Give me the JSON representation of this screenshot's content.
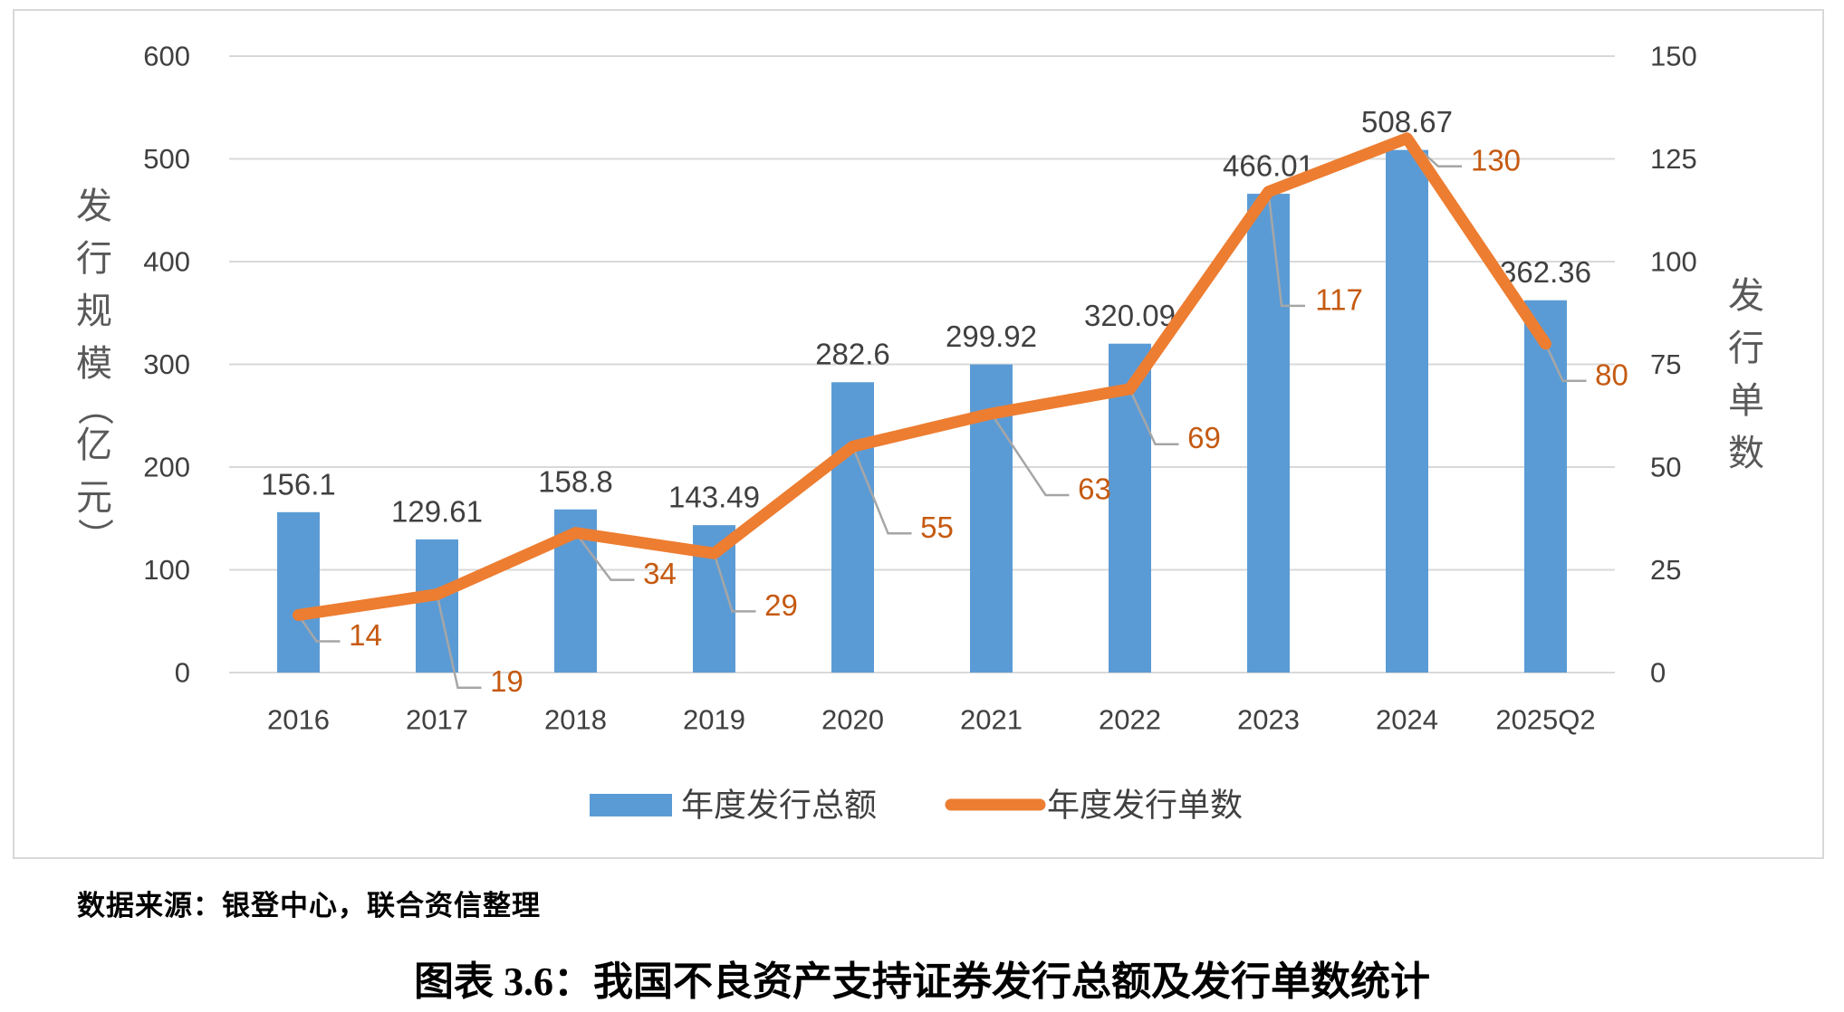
{
  "figure": {
    "source_note": "数据来源：银登中心，联合资信整理",
    "caption": "图表 3.6：我国不良资产支持证券发行总额及发行单数统计"
  },
  "chart_data": {
    "type": "combo-bar-line",
    "categories": [
      "2016",
      "2017",
      "2018",
      "2019",
      "2020",
      "2021",
      "2022",
      "2023",
      "2024",
      "2025Q2"
    ],
    "series": [
      {
        "name": "年度发行总额",
        "type": "bar",
        "axis": "left",
        "color": "#5B9BD5",
        "values": [
          156.1,
          129.61,
          158.8,
          143.49,
          282.6,
          299.92,
          320.09,
          466.01,
          508.67,
          362.36
        ],
        "labels": [
          "156.1",
          "129.61",
          "158.8",
          "143.49",
          "282.6",
          "299.92",
          "320.09",
          "466.01",
          "508.67",
          "362.36"
        ],
        "label_color": "#404040"
      },
      {
        "name": "年度发行单数",
        "type": "line",
        "axis": "right",
        "color": "#ED7D31",
        "values": [
          14,
          19,
          34,
          29,
          55,
          63,
          69,
          117,
          130,
          80
        ],
        "labels": [
          "14",
          "19",
          "34",
          "29",
          "55",
          "63",
          "69",
          "117",
          "130",
          "80"
        ],
        "label_color": "#C55A11"
      }
    ],
    "left_axis": {
      "title": "发行规模（亿元）",
      "min": 0,
      "max": 600,
      "step": 100,
      "ticks": [
        0,
        100,
        200,
        300,
        400,
        500,
        600
      ]
    },
    "right_axis": {
      "title": "发行单数",
      "min": 0,
      "max": 150,
      "step": 25,
      "ticks": [
        0,
        25,
        50,
        75,
        100,
        125,
        150
      ]
    },
    "legend": {
      "position": "bottom",
      "entries": [
        "年度发行总额",
        "年度发行单数"
      ]
    },
    "grid": true,
    "colors": {
      "grid": "#D9D9D9",
      "frame": "#D9D9D9",
      "tick_text": "#404040",
      "axis_title_text": "#595959",
      "leader_line": "#A6A6A6"
    }
  }
}
